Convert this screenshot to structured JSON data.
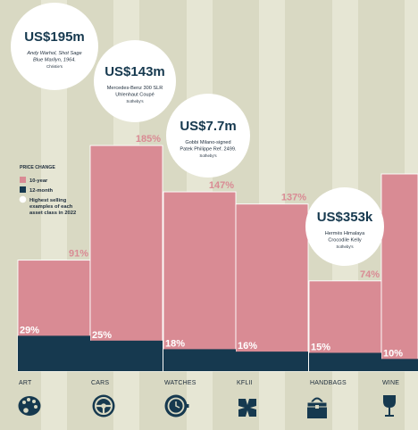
{
  "chart_data": {
    "type": "bar",
    "categories": [
      "ART",
      "CARS",
      "WATCHES",
      "KFLII",
      "HANDBAGS",
      "WINE"
    ],
    "series": [
      {
        "name": "10-year",
        "values": [
          91,
          185,
          147,
          137,
          74,
          null
        ],
        "labels": [
          "91%",
          "185%",
          "147%",
          "137%",
          "74%",
          ""
        ]
      },
      {
        "name": "12-month",
        "values": [
          29,
          25,
          18,
          16,
          15,
          10
        ],
        "labels": [
          "29%",
          "25%",
          "18%",
          "16%",
          "15%",
          "10%"
        ]
      }
    ],
    "ylim": [
      0,
      200
    ],
    "legend": {
      "title": "PRICE CHANGE",
      "items": [
        "10-year",
        "12-month"
      ],
      "bubble_note": [
        "Highest selling",
        "examples of each",
        "asset class in 2022"
      ]
    },
    "bubbles": [
      {
        "category": "ART",
        "price": "US$195m",
        "lines": [
          "Andy Warhol, Shot Sage",
          "Blue Marilyn, 1964."
        ],
        "italic": [
          true,
          true
        ],
        "source": "Christie's"
      },
      {
        "category": "CARS",
        "price": "US$143m",
        "lines": [
          "Mercedes-Benz 300 SLR",
          "Uhlenhaut Coupé"
        ],
        "italic": [
          false,
          false
        ],
        "source": "Sotheby's"
      },
      {
        "category": "WATCHES",
        "price": "US$7.7m",
        "lines": [
          "Gobbi Milano-signed",
          "Patek Philippe Ref. 2499."
        ],
        "italic": [
          false,
          false
        ],
        "source": "Sotheby's"
      },
      {
        "category": "HANDBAGS",
        "price": "US$353k",
        "lines": [
          "Hermès Himalaya",
          "Crocodile Kelly"
        ],
        "italic": [
          false,
          false
        ],
        "source": "Sotheby's"
      }
    ],
    "colors": {
      "ten_year": "#d98b94",
      "twelve_month": "#16394f",
      "background": "#d9d9c3",
      "stripe": "#e6e6d4",
      "bubble": "#ffffff"
    },
    "icons": [
      "palette-icon",
      "steering-wheel-icon",
      "watch-icon",
      "kflii-logo-icon",
      "handbag-icon",
      "wine-glass-icon"
    ]
  }
}
